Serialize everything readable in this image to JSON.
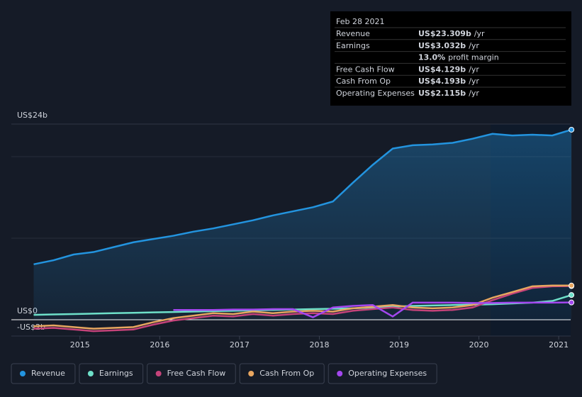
{
  "chart_data": {
    "type": "line",
    "x": [
      2014.42,
      2014.67,
      2014.92,
      2015.17,
      2015.42,
      2015.67,
      2015.92,
      2016.17,
      2016.42,
      2016.67,
      2016.92,
      2017.17,
      2017.42,
      2017.67,
      2017.92,
      2018.17,
      2018.42,
      2018.67,
      2018.92,
      2019.17,
      2019.42,
      2019.67,
      2019.92,
      2020.17,
      2020.42,
      2020.67,
      2020.92,
      2021.16
    ],
    "xlim": [
      2014.14,
      2021.15
    ],
    "xticks": [
      2015,
      2016,
      2017,
      2018,
      2019,
      2020,
      2021
    ],
    "ylim": [
      -2,
      24
    ],
    "yticks": [
      {
        "value": 24,
        "label": "US$24b"
      },
      {
        "value": 0,
        "label": "US$0"
      },
      {
        "value": -2,
        "label": "-US$2b"
      }
    ],
    "minor_gridlines": [
      10,
      20
    ],
    "series": [
      {
        "name": "Revenue",
        "color": "#2394df",
        "values": [
          6.8,
          7.3,
          8.0,
          8.3,
          8.9,
          9.5,
          9.9,
          10.3,
          10.8,
          11.2,
          11.7,
          12.2,
          12.8,
          13.3,
          13.8,
          14.5,
          16.8,
          19.0,
          21.0,
          21.4,
          21.5,
          21.7,
          22.2,
          22.8,
          22.6,
          22.7,
          22.6,
          23.309
        ]
      },
      {
        "name": "Earnings",
        "color": "#6ee0c9",
        "values": [
          0.6,
          0.65,
          0.7,
          0.75,
          0.8,
          0.85,
          0.9,
          0.95,
          1.0,
          1.05,
          1.1,
          1.15,
          1.2,
          1.25,
          1.3,
          1.35,
          1.4,
          1.5,
          1.6,
          1.7,
          1.75,
          1.8,
          1.85,
          1.9,
          2.0,
          2.1,
          2.3,
          3.032
        ]
      },
      {
        "name": "Free Cash Flow",
        "color": "#c5437a",
        "values": [
          -1.1,
          -1.0,
          -1.2,
          -1.4,
          -1.3,
          -1.2,
          -0.6,
          -0.1,
          0.2,
          0.5,
          0.4,
          0.7,
          0.5,
          0.7,
          0.8,
          0.7,
          1.1,
          1.3,
          1.5,
          1.2,
          1.1,
          1.2,
          1.5,
          2.4,
          3.2,
          3.9,
          4.1,
          4.129
        ]
      },
      {
        "name": "Cash From Op",
        "color": "#e8a660",
        "values": [
          -0.8,
          -0.7,
          -0.9,
          -1.1,
          -1.0,
          -0.9,
          -0.3,
          0.2,
          0.5,
          0.8,
          0.7,
          1.0,
          0.8,
          1.0,
          1.1,
          1.0,
          1.4,
          1.6,
          1.8,
          1.5,
          1.4,
          1.5,
          1.8,
          2.7,
          3.4,
          4.1,
          4.2,
          4.193
        ]
      },
      {
        "name": "Operating Expenses",
        "color": "#a347ef",
        "values": [
          null,
          null,
          null,
          null,
          null,
          null,
          null,
          1.2,
          1.2,
          1.2,
          1.25,
          1.25,
          1.3,
          1.3,
          0.3,
          1.5,
          1.7,
          1.8,
          0.4,
          2.1,
          2.1,
          2.1,
          2.05,
          2.05,
          2.1,
          2.1,
          2.1,
          2.115
        ]
      }
    ],
    "tooltip": {
      "date": "Feb 28 2021",
      "rows": [
        {
          "label": "Revenue",
          "value": "US$23.309b",
          "unit": "/yr",
          "color": "#2394df"
        },
        {
          "label": "Earnings",
          "value": "US$3.032b",
          "unit": "/yr",
          "color": "#6ee0c9"
        },
        {
          "label": "",
          "value": "13.0%",
          "unit": "profit margin",
          "color": "#ffffff"
        },
        {
          "label": "Free Cash Flow",
          "value": "US$4.129b",
          "unit": "/yr",
          "color": "#c5437a"
        },
        {
          "label": "Cash From Op",
          "value": "US$4.193b",
          "unit": "/yr",
          "color": "#e8a660"
        },
        {
          "label": "Operating Expenses",
          "value": "US$2.115b",
          "unit": "/yr",
          "color": "#a347ef"
        }
      ]
    }
  }
}
